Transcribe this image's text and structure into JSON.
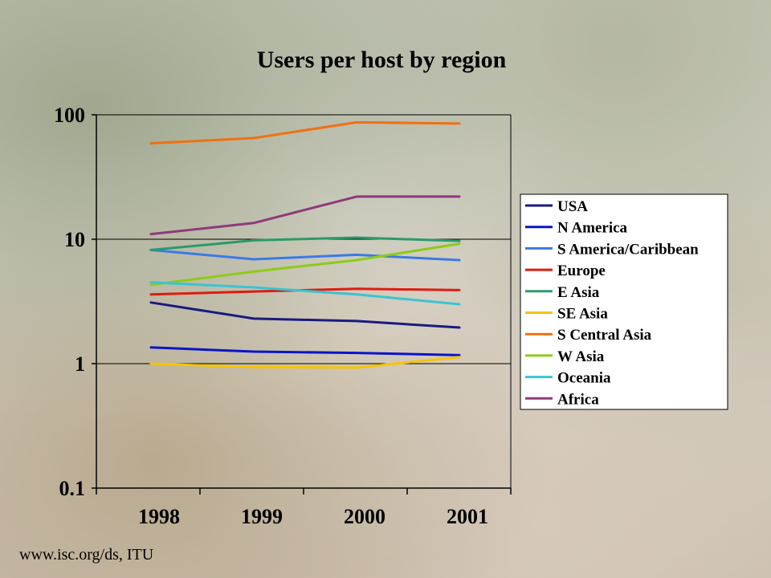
{
  "source": "www.isc.org/ds, ITU",
  "chart_data": {
    "type": "line",
    "title": "Users per host by region",
    "x": [
      "1998",
      "1999",
      "2000",
      "2001"
    ],
    "yscale": "log",
    "ylim": [
      0.1,
      100
    ],
    "yticks": [
      "100",
      "10",
      "1",
      "0.1"
    ],
    "ytick_values": [
      100,
      10,
      1,
      0.1
    ],
    "grid": "horizontal major gridlines",
    "legend_position": "right",
    "series": [
      {
        "name": "USA",
        "color": "#1a1a80",
        "values": [
          3.1,
          2.3,
          2.2,
          1.95
        ]
      },
      {
        "name": "N America",
        "color": "#0a14c8",
        "values": [
          1.35,
          1.25,
          1.22,
          1.17
        ]
      },
      {
        "name": "S America/Caribbean",
        "color": "#3a7ae6",
        "values": [
          8.2,
          6.9,
          7.5,
          6.8
        ]
      },
      {
        "name": "Europe",
        "color": "#e01b0e",
        "values": [
          3.6,
          3.8,
          4.0,
          3.9
        ]
      },
      {
        "name": "E Asia",
        "color": "#2a9a6a",
        "values": [
          8.2,
          9.8,
          10.3,
          9.7
        ]
      },
      {
        "name": "SE Asia",
        "color": "#f5c400",
        "values": [
          1.0,
          0.94,
          0.93,
          1.13
        ]
      },
      {
        "name": "S Central Asia",
        "color": "#f07010",
        "values": [
          59,
          65,
          87,
          85
        ]
      },
      {
        "name": "W Asia",
        "color": "#8ccc14",
        "values": [
          4.3,
          5.5,
          6.8,
          9.2
        ]
      },
      {
        "name": "Oceania",
        "color": "#3ac4d0",
        "values": [
          4.5,
          4.1,
          3.6,
          3.0
        ]
      },
      {
        "name": "Africa",
        "color": "#8e3a7a",
        "values": [
          11,
          13.5,
          22,
          22
        ]
      }
    ]
  }
}
